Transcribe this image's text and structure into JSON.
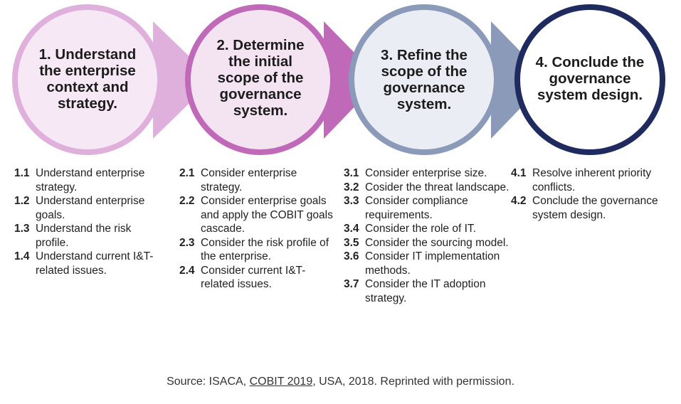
{
  "stages": [
    {
      "title": "1. Understand the enterprise context and strategy.",
      "steps": [
        {
          "num": "1.1",
          "text": "Understand enterprise strategy."
        },
        {
          "num": "1.2",
          "text": "Understand enterprise goals."
        },
        {
          "num": "1.3",
          "text": "Understand the risk profile."
        },
        {
          "num": "1.4",
          "text": "Understand current I&T-related issues."
        }
      ]
    },
    {
      "title": "2. Determine the initial scope of the governance system.",
      "steps": [
        {
          "num": "2.1",
          "text": "Consider enterprise strategy."
        },
        {
          "num": "2.2",
          "text": "Consider enterprise goals and apply the COBIT goals cascade."
        },
        {
          "num": "2.3",
          "text": "Consider the risk profile of the enterprise."
        },
        {
          "num": "2.4",
          "text": "Consider current I&T-related issues."
        }
      ]
    },
    {
      "title": "3. Refine the scope of the governance system.",
      "steps": [
        {
          "num": "3.1",
          "text": "Consider enterprise size."
        },
        {
          "num": "3.2",
          "text": "Cosider the threat landscape."
        },
        {
          "num": "3.3",
          "text": "Consider compliance requirements."
        },
        {
          "num": "3.4",
          "text": "Consider the role of IT."
        },
        {
          "num": "3.5",
          "text": "Consider the sourcing model."
        },
        {
          "num": "3.6",
          "text": "Consider IT implementation methods."
        },
        {
          "num": "3.7",
          "text": "Consider the IT adoption strategy."
        }
      ]
    },
    {
      "title": "4. Conclude the governance system design.",
      "steps": [
        {
          "num": "4.1",
          "text": "Resolve inherent priority conflicts."
        },
        {
          "num": "4.2",
          "text": "Conclude the governance system design."
        }
      ]
    }
  ],
  "caption": {
    "prefix": "Source: ISACA, ",
    "link_text": "COBIT 2019",
    "suffix": ", USA, 2018. Reprinted with permission."
  },
  "colors": {
    "stage1_ring": "#e0b0dc",
    "stage1_fill": "#f6e8f4",
    "stage2_ring": "#c069b8",
    "stage2_fill": "#f4e4f2",
    "stage3_ring": "#8a9ab8",
    "stage3_fill": "#eaedf3",
    "stage4_ring": "#1f2a5e",
    "stage4_fill": "#ffffff"
  }
}
